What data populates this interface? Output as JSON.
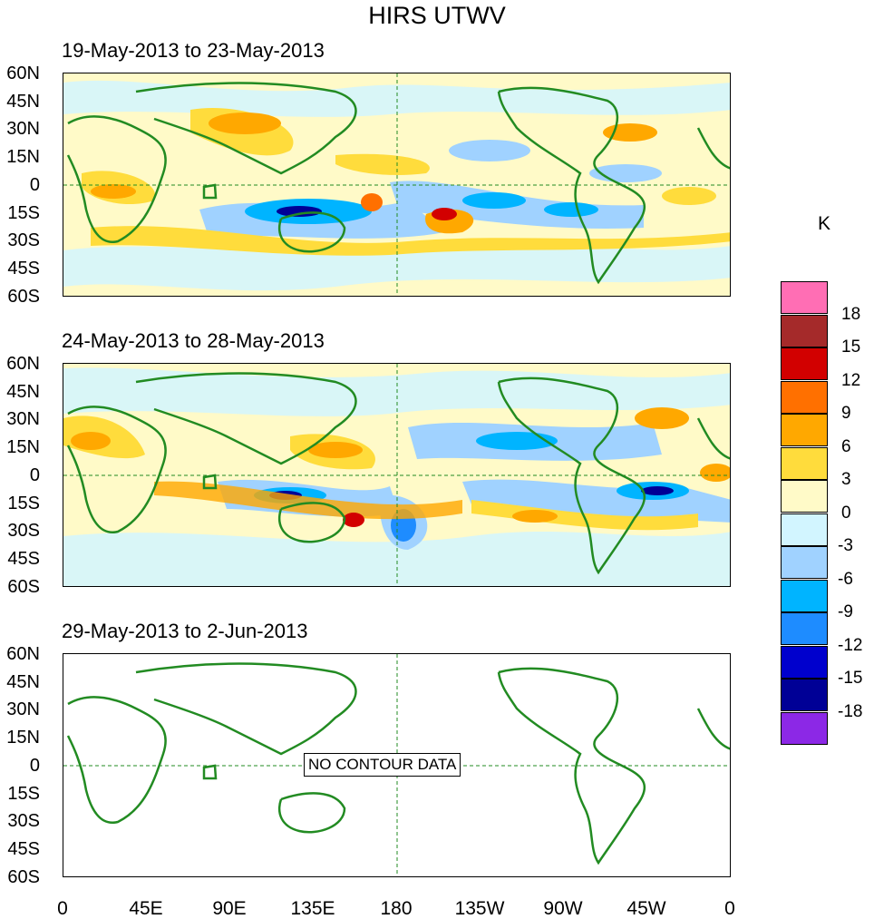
{
  "title": "HIRS UTWV",
  "panels": [
    {
      "date_range": "19-May-2013 to 23-May-2013",
      "has_data": true
    },
    {
      "date_range": "24-May-2013 to 28-May-2013",
      "has_data": true
    },
    {
      "date_range": "29-May-2013 to 2-Jun-2013",
      "has_data": false,
      "message": "NO CONTOUR DATA"
    }
  ],
  "lat_labels": [
    "60N",
    "45N",
    "30N",
    "15N",
    "0",
    "15S",
    "30S",
    "45S",
    "60S"
  ],
  "lon_labels": [
    "0",
    "45E",
    "90E",
    "135E",
    "180",
    "135W",
    "90W",
    "45W",
    "0"
  ],
  "colorbar": {
    "unit": "K",
    "colors": [
      "#ff6eb4",
      "#a52a2a",
      "#d20000",
      "#ff7000",
      "#ffa800",
      "#ffdc3c",
      "#fffac8",
      "#d2f5ff",
      "#a0d2ff",
      "#00b4ff",
      "#1e8cff",
      "#0000cd",
      "#000096",
      "#8c28e6"
    ],
    "labels": [
      "18",
      "15",
      "12",
      "9",
      "6",
      "3",
      "0",
      "-3",
      "-6",
      "-9",
      "-12",
      "-15",
      "-18"
    ]
  },
  "map_colors": {
    "coastline": "#228b22",
    "grid": "#228b22",
    "background": "#fffac8"
  }
}
